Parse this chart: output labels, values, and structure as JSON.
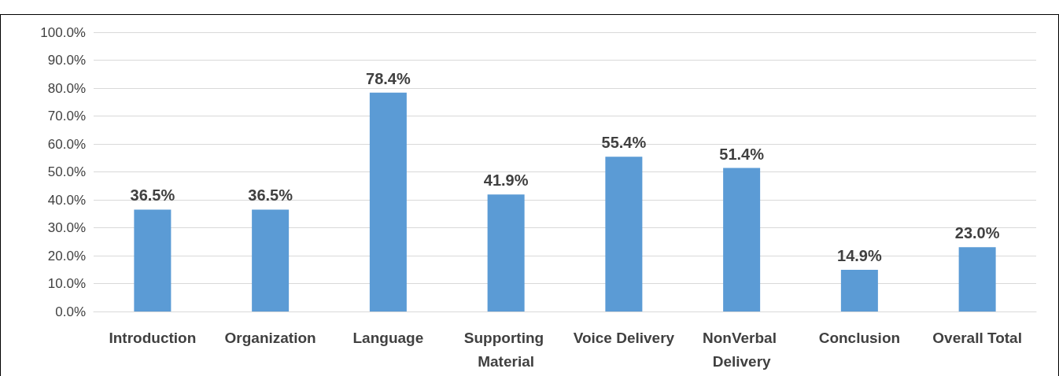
{
  "chart_data": {
    "type": "bar",
    "categories": [
      "Introduction",
      "Organization",
      "Language",
      "Supporting Material",
      "Voice Delivery",
      "NonVerbal Delivery",
      "Conclusion",
      "Overall Total"
    ],
    "values": [
      36.5,
      36.5,
      78.4,
      41.9,
      55.4,
      51.4,
      14.9,
      23.0
    ],
    "value_labels": [
      "36.5%",
      "36.5%",
      "78.4%",
      "41.9%",
      "55.4%",
      "51.4%",
      "14.9%",
      "23.0%"
    ],
    "color": "#5b9bd5",
    "ylim": [
      0,
      100
    ],
    "yticks": [
      {
        "value": 0,
        "label": "0.0%"
      },
      {
        "value": 10,
        "label": "10.0%"
      },
      {
        "value": 20,
        "label": "20.0%"
      },
      {
        "value": 30,
        "label": "30.0%"
      },
      {
        "value": 40,
        "label": "40.0%"
      },
      {
        "value": 50,
        "label": "50.0%"
      },
      {
        "value": 60,
        "label": "60.0%"
      },
      {
        "value": 70,
        "label": "70.0%"
      },
      {
        "value": 80,
        "label": "80.0%"
      },
      {
        "value": 90,
        "label": "90.0%"
      },
      {
        "value": 100,
        "label": "100.0%"
      }
    ],
    "grid": "y"
  }
}
